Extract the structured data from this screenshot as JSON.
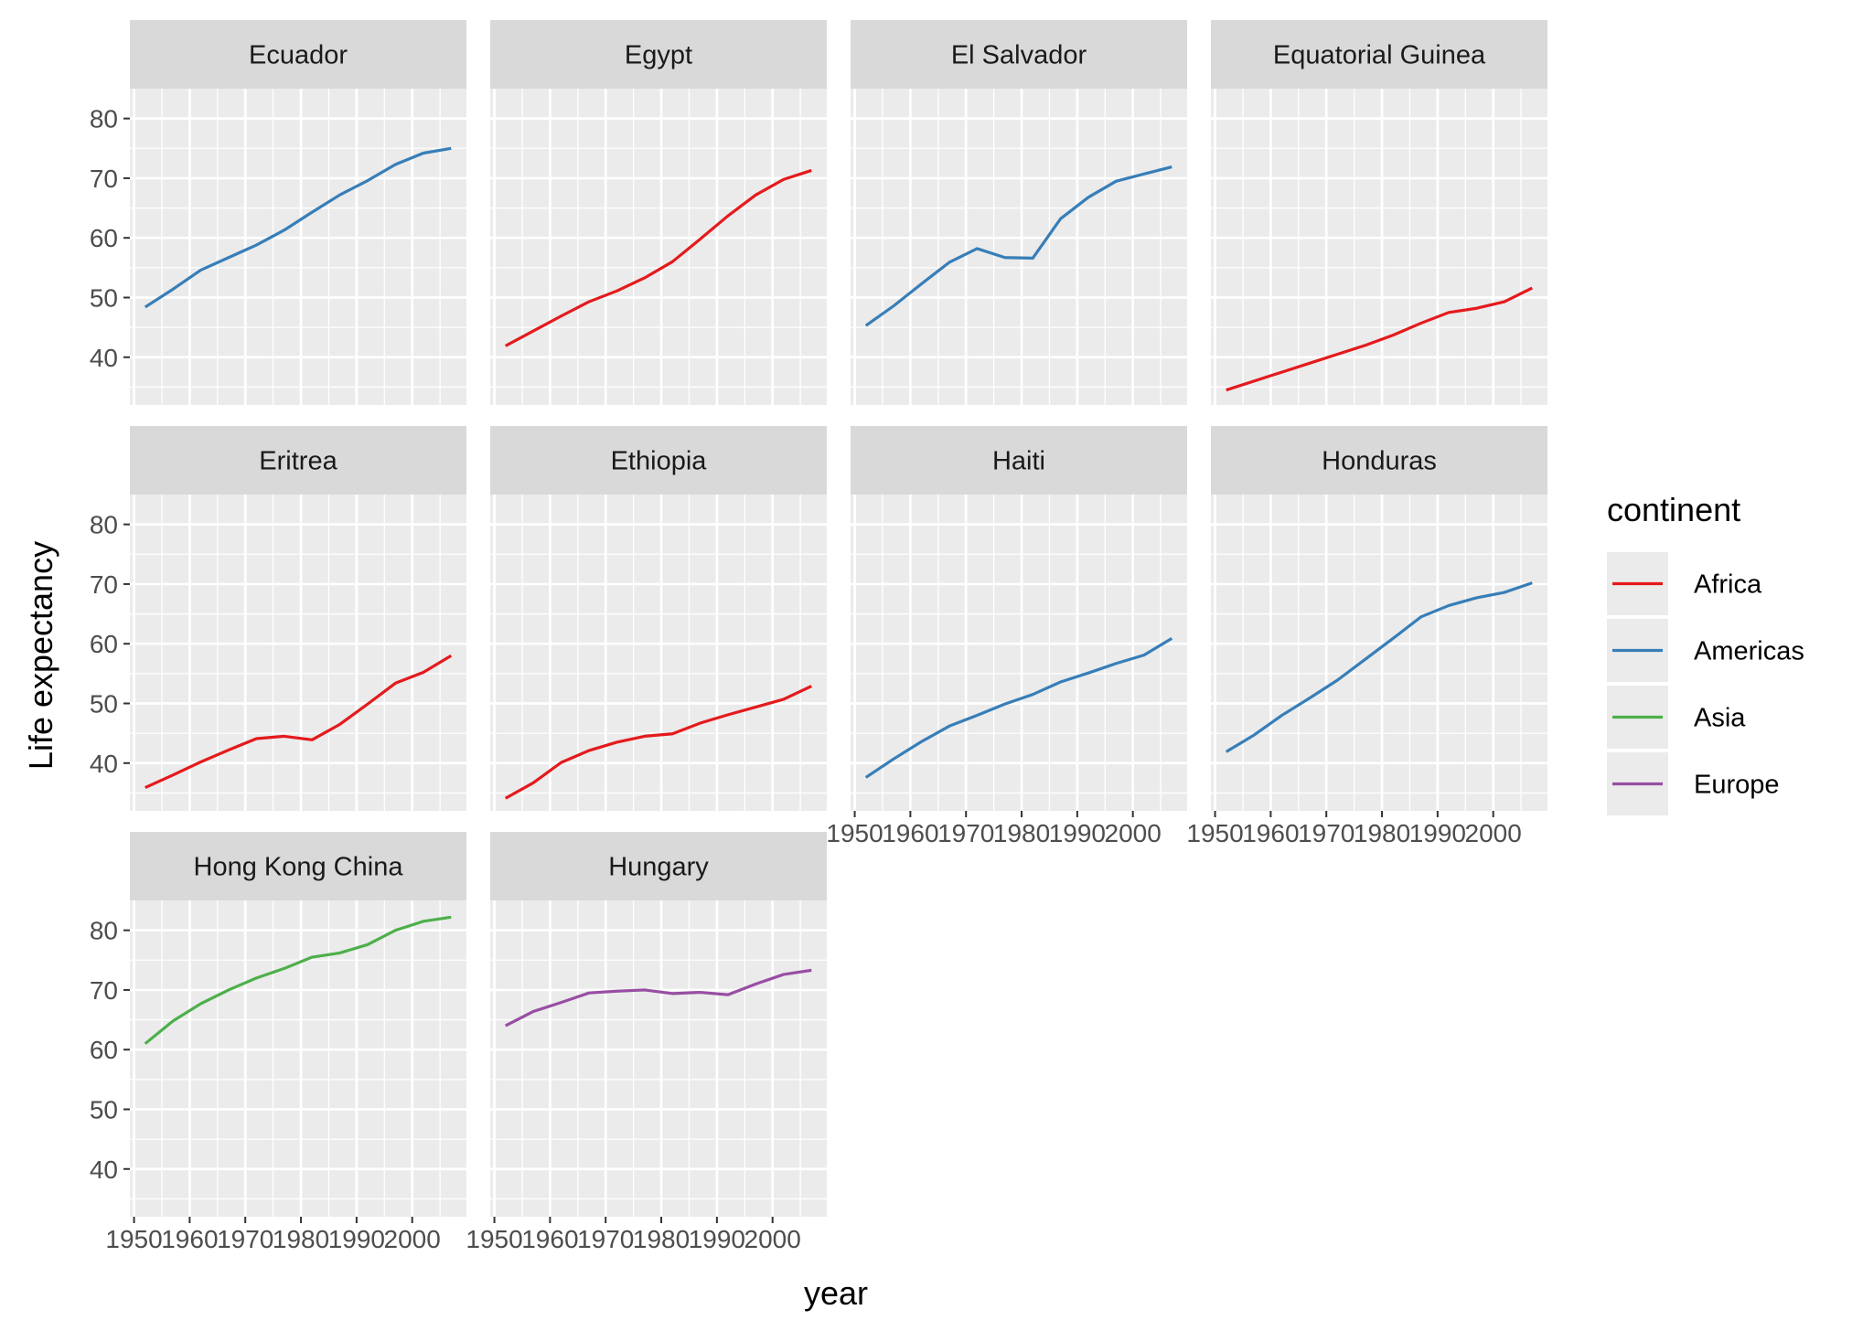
{
  "chart_data": {
    "type": "line",
    "xlabel": "year",
    "ylabel": "Life expectancy",
    "xlim": [
      1949.25,
      2009.75
    ],
    "ylim": [
      32.0,
      85.0
    ],
    "x_ticks": [
      1950,
      1960,
      1970,
      1980,
      1990,
      2000
    ],
    "x_tick_labels": [
      "1950",
      "1960",
      "1970",
      "1980",
      "1990",
      "2000"
    ],
    "y_ticks": [
      40,
      50,
      60,
      70,
      80
    ],
    "y_tick_labels": [
      "40",
      "50",
      "60",
      "70",
      "80"
    ],
    "grid": true,
    "legend": {
      "title": "continent",
      "placement": "right",
      "entries": [
        {
          "label": "Africa",
          "color": "#E41A1C"
        },
        {
          "label": "Americas",
          "color": "#377EB8"
        },
        {
          "label": "Asia",
          "color": "#4DAF4A"
        },
        {
          "label": "Europe",
          "color": "#984EA3"
        }
      ]
    },
    "x": [
      1952,
      1957,
      1962,
      1967,
      1972,
      1977,
      1982,
      1987,
      1992,
      1997,
      2002,
      2007
    ],
    "panels": [
      {
        "country": "Ecuador",
        "continent": "Americas",
        "values": [
          48.4,
          51.4,
          54.6,
          56.7,
          58.8,
          61.3,
          64.3,
          67.2,
          69.6,
          72.3,
          74.2,
          75.0
        ]
      },
      {
        "country": "Egypt",
        "continent": "Africa",
        "values": [
          41.9,
          44.4,
          46.9,
          49.3,
          51.1,
          53.3,
          56.0,
          59.8,
          63.7,
          67.2,
          69.8,
          71.3
        ]
      },
      {
        "country": "El Salvador",
        "continent": "Americas",
        "values": [
          45.3,
          48.6,
          52.3,
          55.9,
          58.2,
          56.7,
          56.6,
          63.2,
          66.8,
          69.5,
          70.7,
          71.9
        ]
      },
      {
        "country": "Equatorial Guinea",
        "continent": "Africa",
        "values": [
          34.5,
          36.0,
          37.5,
          39.0,
          40.5,
          42.0,
          43.7,
          45.7,
          47.5,
          48.2,
          49.3,
          51.6
        ]
      },
      {
        "country": "Eritrea",
        "continent": "Africa",
        "values": [
          35.9,
          38.0,
          40.2,
          42.2,
          44.1,
          44.5,
          43.9,
          46.5,
          49.9,
          53.4,
          55.2,
          58.0
        ]
      },
      {
        "country": "Ethiopia",
        "continent": "Africa",
        "values": [
          34.1,
          36.7,
          40.1,
          42.1,
          43.5,
          44.5,
          44.9,
          46.7,
          48.1,
          49.4,
          50.7,
          52.9
        ]
      },
      {
        "country": "Haiti",
        "continent": "Americas",
        "values": [
          37.6,
          40.7,
          43.6,
          46.2,
          48.0,
          49.9,
          51.5,
          53.6,
          55.1,
          56.7,
          58.1,
          60.9
        ]
      },
      {
        "country": "Honduras",
        "continent": "Americas",
        "values": [
          41.9,
          44.7,
          48.0,
          50.9,
          53.9,
          57.4,
          60.9,
          64.5,
          66.4,
          67.7,
          68.6,
          70.2
        ]
      },
      {
        "country": "Hong Kong China",
        "continent": "Asia",
        "values": [
          61.0,
          64.8,
          67.7,
          70.0,
          72.0,
          73.6,
          75.5,
          76.2,
          77.6,
          80.0,
          81.5,
          82.2
        ]
      },
      {
        "country": "Hungary",
        "continent": "Europe",
        "values": [
          64.0,
          66.4,
          67.9,
          69.5,
          69.8,
          70.0,
          69.4,
          69.6,
          69.2,
          71.0,
          72.6,
          73.3
        ]
      }
    ]
  }
}
